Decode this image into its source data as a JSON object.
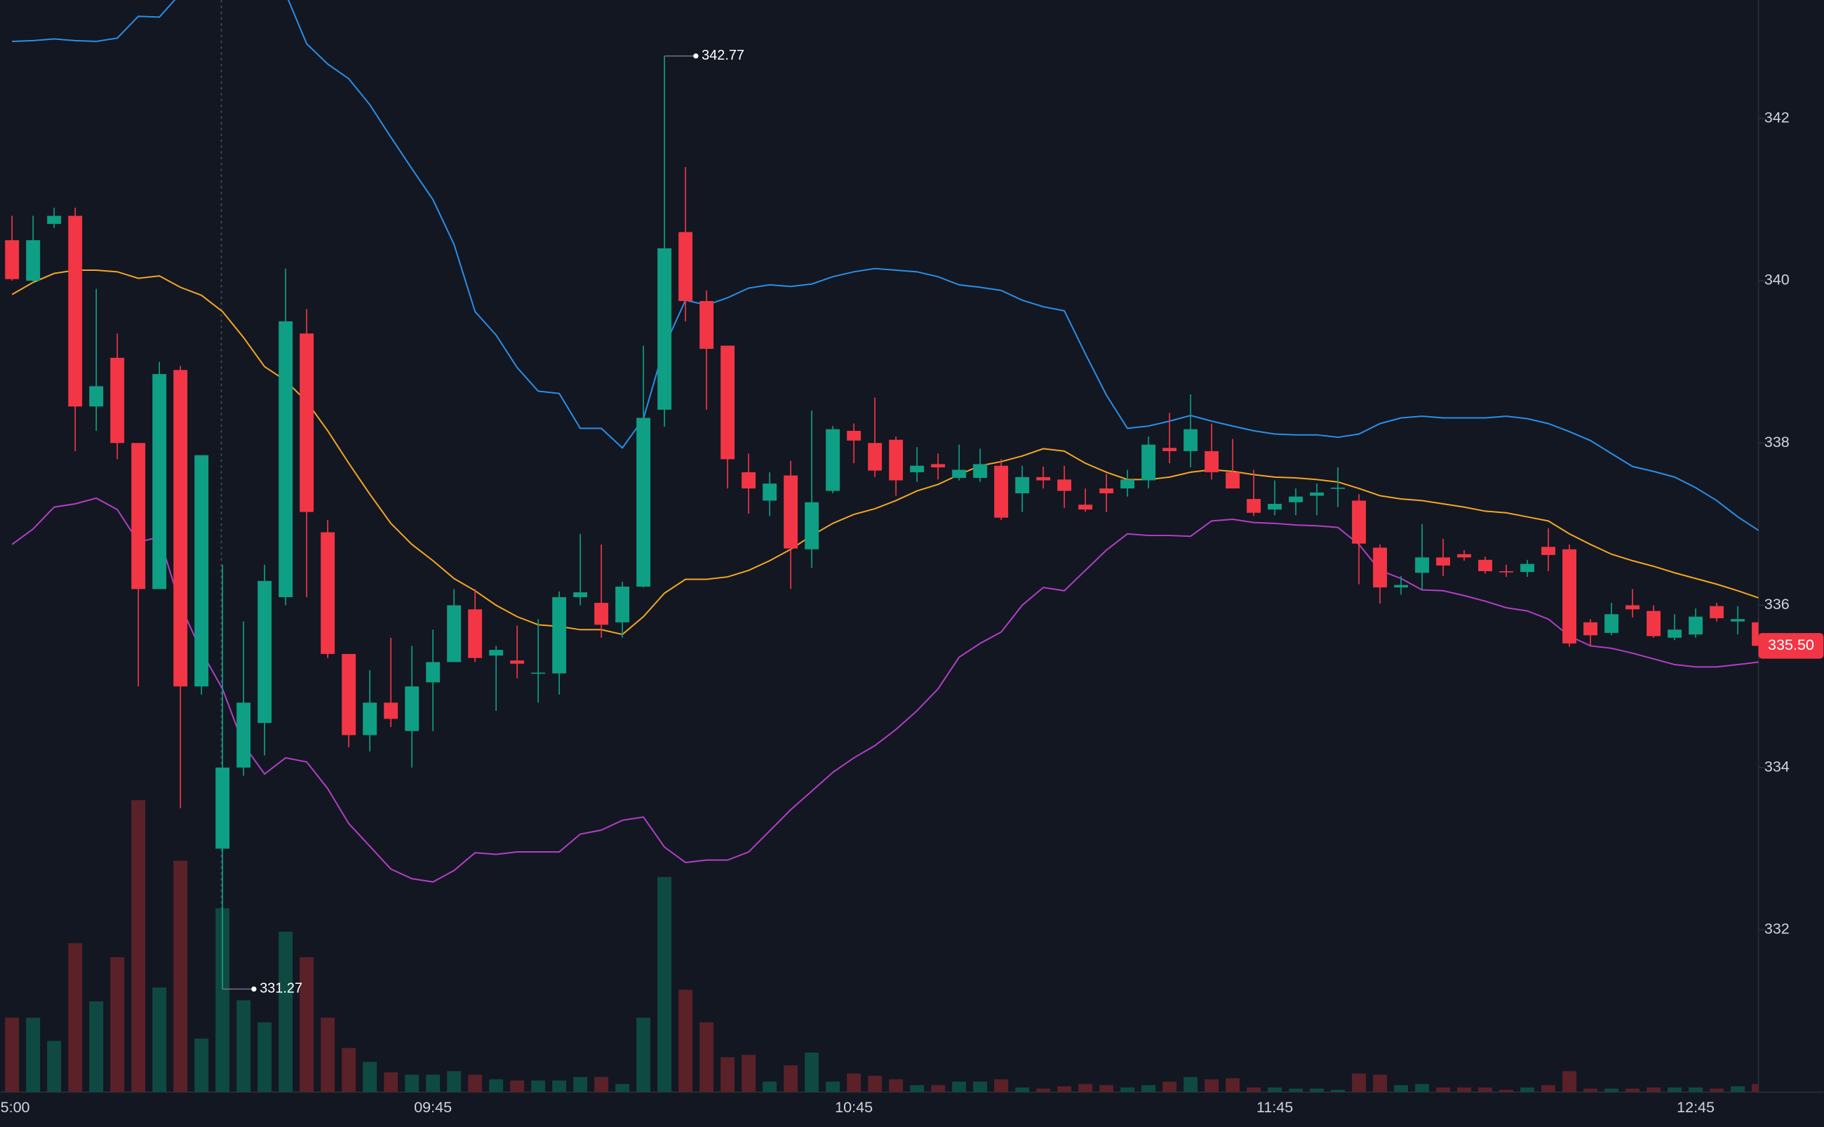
{
  "chart_data": {
    "type": "candlestick",
    "categories": [
      "5:00",
      null,
      null,
      null,
      null,
      null,
      null,
      null,
      null,
      null,
      null,
      null,
      null,
      null,
      null,
      null,
      null,
      null,
      null,
      null,
      "09:45",
      null,
      null,
      null,
      null,
      null,
      null,
      null,
      null,
      null,
      null,
      null,
      null,
      null,
      null,
      null,
      null,
      null,
      null,
      null,
      "10:45",
      null,
      null,
      null,
      null,
      null,
      null,
      null,
      null,
      null,
      null,
      null,
      null,
      null,
      null,
      null,
      null,
      null,
      null,
      null,
      "11:45",
      null,
      null,
      null,
      null,
      null,
      null,
      null,
      null,
      null,
      null,
      null,
      null,
      null,
      null,
      null,
      null,
      null,
      null,
      null,
      "12:45",
      null,
      null,
      null
    ],
    "open": [
      340.5,
      340.0,
      340.7,
      340.8,
      338.45,
      339.05,
      338.0,
      336.2,
      338.9,
      335.0,
      333.0,
      334.0,
      334.55,
      336.1,
      339.35,
      336.9,
      335.4,
      334.4,
      334.8,
      334.45,
      335.05,
      335.3,
      335.95,
      335.38,
      335.32,
      335.16,
      335.16,
      336.1,
      336.03,
      335.79,
      336.23,
      338.41,
      340.6,
      339.75,
      339.2,
      337.64,
      337.29,
      337.6,
      336.69,
      337.41,
      338.15,
      338.0,
      338.04,
      337.64,
      337.74,
      337.57,
      337.57,
      337.72,
      337.38,
      337.58,
      337.55,
      337.24,
      337.44,
      337.44,
      337.54,
      337.94,
      337.9,
      337.9,
      337.64,
      337.31,
      337.18,
      337.27,
      337.35,
      337.44,
      337.29,
      336.71,
      336.22,
      336.4,
      336.59,
      336.63,
      336.56,
      336.42,
      336.41,
      336.72,
      336.69,
      335.79,
      335.66,
      336.0,
      335.93,
      335.6,
      335.64,
      335.99,
      335.8,
      335.79
    ],
    "high": [
      340.8,
      340.8,
      340.9,
      340.9,
      339.9,
      339.35,
      338.0,
      339.0,
      338.95,
      337.85,
      336.5,
      335.8,
      336.5,
      340.15,
      339.65,
      337.05,
      335.4,
      335.2,
      335.6,
      335.5,
      335.7,
      336.2,
      336.2,
      335.5,
      335.75,
      335.83,
      336.17,
      336.88,
      336.75,
      336.29,
      339.2,
      342.77,
      341.4,
      339.88,
      339.2,
      337.87,
      337.64,
      337.78,
      338.4,
      338.21,
      338.24,
      338.56,
      338.08,
      337.95,
      337.87,
      337.98,
      337.93,
      337.8,
      337.72,
      337.71,
      337.72,
      337.44,
      337.62,
      337.67,
      338.08,
      338.37,
      338.6,
      338.24,
      338.05,
      337.67,
      337.54,
      337.44,
      337.5,
      337.7,
      337.37,
      336.75,
      336.36,
      337.0,
      336.82,
      336.68,
      336.6,
      336.5,
      336.56,
      336.95,
      336.75,
      335.83,
      336.03,
      336.2,
      336.0,
      335.89,
      335.96,
      336.03,
      335.99,
      335.83
    ],
    "low": [
      340.0,
      339.98,
      340.65,
      337.9,
      338.15,
      337.8,
      335.0,
      336.2,
      333.5,
      334.9,
      331.27,
      333.9,
      334.15,
      336.0,
      336.1,
      335.35,
      334.25,
      334.2,
      334.5,
      334.0,
      334.45,
      335.3,
      335.3,
      334.7,
      335.1,
      334.8,
      334.9,
      336.0,
      335.6,
      335.6,
      336.22,
      338.2,
      339.5,
      338.41,
      337.44,
      337.13,
      337.1,
      336.2,
      336.46,
      337.38,
      337.75,
      337.58,
      337.35,
      337.52,
      337.55,
      337.54,
      337.52,
      337.05,
      337.15,
      337.44,
      337.2,
      337.15,
      337.15,
      337.34,
      337.44,
      337.75,
      337.7,
      337.55,
      337.44,
      337.1,
      337.11,
      337.11,
      337.11,
      337.21,
      336.26,
      336.02,
      336.13,
      336.2,
      336.36,
      336.55,
      336.39,
      336.35,
      336.35,
      336.42,
      335.49,
      335.49,
      335.63,
      335.85,
      335.6,
      335.57,
      335.6,
      335.8,
      335.64,
      335.5
    ],
    "close": [
      340.02,
      340.5,
      340.8,
      338.45,
      338.7,
      338.0,
      336.2,
      338.85,
      335.0,
      337.85,
      334.0,
      334.8,
      336.3,
      339.5,
      337.15,
      335.4,
      334.4,
      334.8,
      334.6,
      335.0,
      335.3,
      336.0,
      335.35,
      335.45,
      335.28,
      335.17,
      336.1,
      336.16,
      335.76,
      336.23,
      338.31,
      340.4,
      339.75,
      339.16,
      337.8,
      337.44,
      337.5,
      336.7,
      337.27,
      338.17,
      338.03,
      337.66,
      337.54,
      337.72,
      337.7,
      337.67,
      337.74,
      337.08,
      337.58,
      337.54,
      337.41,
      337.18,
      337.38,
      337.55,
      337.98,
      337.9,
      338.17,
      337.64,
      337.44,
      337.14,
      337.25,
      337.34,
      337.39,
      337.45,
      336.76,
      336.22,
      336.25,
      336.59,
      336.49,
      336.59,
      336.42,
      336.41,
      336.51,
      336.62,
      335.53,
      335.63,
      335.89,
      335.95,
      335.62,
      335.7,
      335.86,
      335.84,
      335.83,
      335.5
    ],
    "volume": [
      64,
      64,
      44,
      128,
      78,
      116,
      251,
      90,
      199,
      46,
      158,
      79,
      60,
      138,
      116,
      64,
      38,
      26,
      17,
      15,
      15,
      18,
      15,
      11,
      10,
      10,
      10,
      13,
      13,
      7,
      64,
      185,
      88,
      60,
      30,
      32,
      9,
      23,
      34,
      9,
      16,
      14,
      11,
      6,
      6,
      9,
      9,
      11,
      4,
      3,
      5,
      7,
      6,
      4,
      6,
      9,
      13,
      11,
      12,
      4,
      4,
      3,
      3,
      2,
      16,
      15,
      6,
      7,
      4,
      4,
      4,
      2,
      4,
      6,
      18,
      3,
      3,
      3,
      4,
      4,
      4,
      3,
      5,
      7
    ],
    "vlim": [
      0,
      300
    ],
    "up_color": "#0e9f84",
    "down_color": "#f23645",
    "up_volume_color": "#0e4a42",
    "down_volume_color": "#5a2129",
    "lines": [
      {
        "color": "#2a8fe8",
        "values": [
          342.95,
          342.96,
          342.98,
          342.96,
          342.95,
          342.99,
          343.26,
          343.25,
          343.54,
          343.75,
          343.89,
          343.89,
          343.75,
          343.54,
          342.92,
          342.67,
          342.49,
          342.17,
          341.77,
          341.38,
          341.0,
          340.45,
          339.62,
          339.33,
          338.93,
          338.64,
          338.61,
          338.18,
          338.18,
          337.94,
          338.3,
          339.19,
          339.76,
          339.7,
          339.79,
          339.91,
          339.95,
          339.93,
          339.96,
          340.05,
          340.11,
          340.15,
          340.13,
          340.11,
          340.05,
          339.95,
          339.92,
          339.88,
          339.76,
          339.68,
          339.63,
          339.1,
          338.59,
          338.18,
          338.21,
          338.27,
          338.34,
          338.27,
          338.21,
          338.15,
          338.11,
          338.1,
          338.1,
          338.07,
          338.11,
          338.24,
          338.31,
          338.33,
          338.31,
          338.31,
          338.31,
          338.33,
          338.3,
          338.24,
          338.14,
          338.03,
          337.87,
          337.71,
          337.65,
          337.58,
          337.45,
          337.29,
          337.09,
          336.92
        ]
      },
      {
        "color": "#f5a623",
        "values": [
          339.83,
          339.98,
          340.09,
          340.13,
          340.13,
          340.11,
          340.03,
          340.06,
          339.92,
          339.82,
          339.62,
          339.3,
          338.94,
          338.77,
          338.51,
          338.15,
          337.75,
          337.37,
          337.01,
          336.75,
          336.55,
          336.33,
          336.18,
          336.0,
          335.86,
          335.76,
          335.74,
          335.7,
          335.7,
          335.64,
          335.86,
          336.15,
          336.32,
          336.32,
          336.35,
          336.43,
          336.55,
          336.69,
          336.86,
          337.01,
          337.12,
          337.19,
          337.29,
          337.41,
          337.49,
          337.61,
          337.72,
          337.77,
          337.84,
          337.93,
          337.9,
          337.75,
          337.64,
          337.55,
          337.55,
          337.58,
          337.64,
          337.67,
          337.65,
          337.61,
          337.58,
          337.57,
          337.55,
          337.52,
          337.44,
          337.35,
          337.31,
          337.29,
          337.25,
          337.21,
          337.16,
          337.14,
          337.09,
          337.04,
          336.88,
          336.75,
          336.63,
          336.55,
          336.48,
          336.4,
          336.33,
          336.26,
          336.18,
          336.09
        ]
      },
      {
        "color": "#b33fc6",
        "values": [
          336.75,
          336.94,
          337.21,
          337.25,
          337.32,
          337.18,
          336.78,
          336.84,
          336.0,
          335.43,
          334.97,
          334.28,
          333.92,
          334.12,
          334.07,
          333.74,
          333.31,
          333.03,
          332.75,
          332.63,
          332.59,
          332.73,
          332.95,
          332.93,
          332.96,
          332.96,
          332.96,
          333.18,
          333.23,
          333.35,
          333.39,
          333.02,
          332.83,
          332.86,
          332.86,
          332.96,
          333.22,
          333.48,
          333.71,
          333.94,
          334.12,
          334.27,
          334.47,
          334.7,
          334.97,
          335.36,
          335.53,
          335.67,
          336.0,
          336.22,
          336.18,
          336.43,
          336.68,
          336.88,
          336.86,
          336.86,
          336.85,
          337.04,
          337.06,
          337.02,
          337.01,
          336.99,
          336.98,
          336.96,
          336.75,
          336.43,
          336.33,
          336.19,
          336.18,
          336.12,
          336.05,
          335.97,
          335.93,
          335.83,
          335.62,
          335.5,
          335.47,
          335.41,
          335.34,
          335.27,
          335.24,
          335.24,
          335.27,
          335.3
        ]
      }
    ],
    "ylim": [
      330,
      343.46
    ],
    "yticks": [
      332,
      334,
      336,
      338,
      340,
      342
    ],
    "last_price": {
      "value": 335.5,
      "label": "335.50"
    }
  }
}
